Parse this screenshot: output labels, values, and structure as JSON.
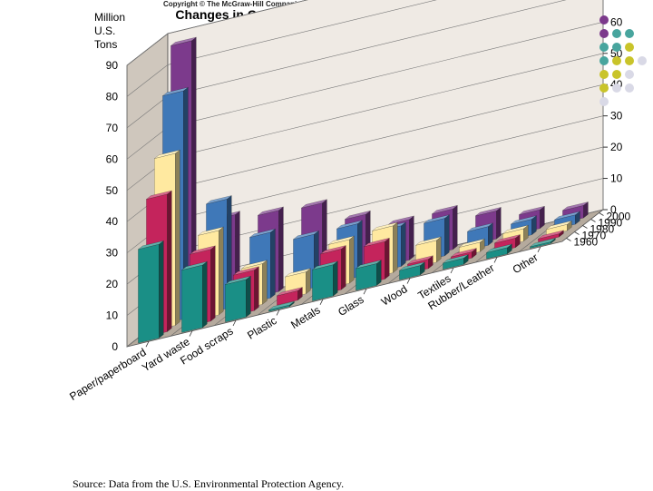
{
  "copyright": "Copyright © The McGraw-Hill Companies, Inc. Permission required for reproduction or display.",
  "source": "Source: Data from the U.S. Environmental Protection Agency.",
  "chart_data": {
    "type": "bar",
    "title": "Changes in Composition of Municipal Solid Waste",
    "ylabel": "Million\nU.S.\nTons",
    "ylim": [
      0,
      90
    ],
    "yticks": [
      0,
      10,
      20,
      30,
      40,
      50,
      60,
      70,
      80,
      90
    ],
    "categories": [
      "Paper/paperboard",
      "Yard waste",
      "Food scraps",
      "Plastic",
      "Metals",
      "Glass",
      "Wood",
      "Textiles",
      "Rubber/Leather",
      "Other"
    ],
    "series": [
      {
        "name": "1960",
        "color": "#1a8f86",
        "values": [
          30,
          20,
          12,
          0.5,
          10,
          7,
          3,
          2,
          2,
          0.5
        ]
      },
      {
        "name": "1970",
        "color": "#c4245c",
        "values": [
          44,
          23,
          13,
          3,
          13,
          12,
          3,
          2,
          3,
          1
        ]
      },
      {
        "name": "1980",
        "color": "#ffe9a0",
        "values": [
          55,
          27,
          13,
          7,
          14,
          15,
          7,
          3,
          4,
          2
        ]
      },
      {
        "name": "1990",
        "color": "#3f78b8",
        "values": [
          73,
          35,
          21,
          17,
          17,
          13,
          12,
          6,
          5,
          3
        ]
      },
      {
        "name": "2000",
        "color": "#7c3a8c",
        "values": [
          87,
          28,
          26,
          25,
          18,
          13,
          13,
          9,
          6,
          4
        ]
      }
    ],
    "grid": true,
    "legend": "top-right"
  }
}
